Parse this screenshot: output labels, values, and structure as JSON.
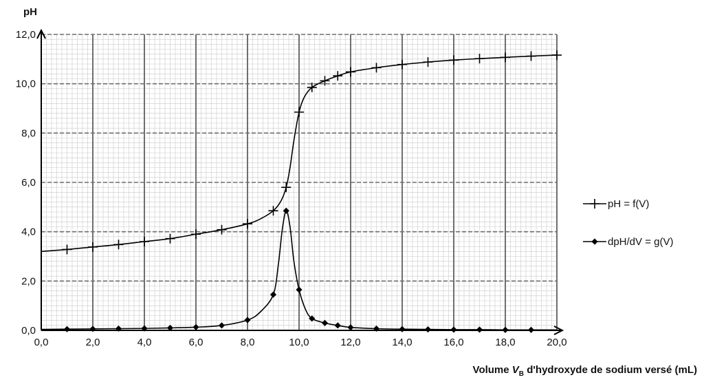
{
  "chart_data": {
    "type": "line",
    "xlabel_parts": {
      "before": "Volume ",
      "var": "V",
      "sub": "B",
      "after": " d'hydroxyde de sodium versé (mL)"
    },
    "ylabel": "pH",
    "xlim": [
      0,
      20
    ],
    "ylim": [
      0,
      12
    ],
    "x_ticks": [
      "0,0",
      "2,0",
      "4,0",
      "6,0",
      "8,0",
      "10,0",
      "12,0",
      "14,0",
      "16,0",
      "18,0",
      "20,0"
    ],
    "y_ticks": [
      "0,0",
      "2,0",
      "4,0",
      "6,0",
      "8,0",
      "10,0",
      "12,0"
    ],
    "grid": true,
    "legend_position": "right",
    "series": [
      {
        "name": "pH = f(V)",
        "marker": "plus",
        "color": "#000000",
        "curve_x": [
          0,
          1,
          2,
          3,
          4,
          5,
          6,
          7,
          8,
          8.5,
          9,
          9.3,
          9.5,
          9.65,
          9.8,
          10,
          10.2,
          10.5,
          11,
          11.5,
          12,
          13,
          14,
          15,
          16,
          17,
          18,
          19,
          20
        ],
        "curve_y": [
          3.2,
          3.28,
          3.38,
          3.48,
          3.6,
          3.72,
          3.9,
          4.08,
          4.32,
          4.52,
          4.85,
          5.25,
          5.8,
          6.6,
          7.7,
          8.85,
          9.45,
          9.85,
          10.12,
          10.32,
          10.48,
          10.65,
          10.78,
          10.88,
          10.96,
          11.02,
          11.07,
          11.12,
          11.16
        ],
        "x": [
          1,
          2,
          3,
          4,
          5,
          6,
          7,
          8,
          9,
          9.5,
          10,
          10.5,
          11,
          11.5,
          12,
          13,
          14,
          15,
          16,
          17,
          18,
          19,
          20
        ],
        "y": [
          3.28,
          3.38,
          3.48,
          3.6,
          3.72,
          3.9,
          4.08,
          4.32,
          4.85,
          5.8,
          8.85,
          9.85,
          10.12,
          10.32,
          10.48,
          10.65,
          10.78,
          10.88,
          10.96,
          11.02,
          11.07,
          11.12,
          11.16
        ]
      },
      {
        "name": "dpH/dV = g(V)",
        "marker": "diamond",
        "color": "#000000",
        "curve_x": [
          0,
          1,
          2,
          3,
          4,
          5,
          6,
          7,
          8,
          8.5,
          9,
          9.2,
          9.35,
          9.5,
          9.65,
          9.8,
          10,
          10.25,
          10.5,
          11,
          11.5,
          12,
          13,
          14,
          15,
          16,
          17,
          18,
          19,
          20
        ],
        "curve_y": [
          0.04,
          0.05,
          0.06,
          0.07,
          0.08,
          0.1,
          0.13,
          0.2,
          0.42,
          0.75,
          1.45,
          2.7,
          4.1,
          4.85,
          4.2,
          2.8,
          1.65,
          0.85,
          0.48,
          0.3,
          0.2,
          0.12,
          0.07,
          0.05,
          0.04,
          0.03,
          0.03,
          0.02,
          0.02,
          0.02
        ],
        "x": [
          1,
          2,
          3,
          4,
          5,
          6,
          7,
          8,
          9,
          9.5,
          10,
          10.5,
          11,
          11.5,
          12,
          13,
          14,
          15,
          16,
          17,
          18,
          19
        ],
        "y": [
          0.05,
          0.06,
          0.07,
          0.08,
          0.1,
          0.13,
          0.2,
          0.42,
          1.45,
          4.85,
          1.65,
          0.48,
          0.3,
          0.2,
          0.12,
          0.07,
          0.05,
          0.04,
          0.03,
          0.03,
          0.02,
          0.02
        ]
      }
    ]
  }
}
